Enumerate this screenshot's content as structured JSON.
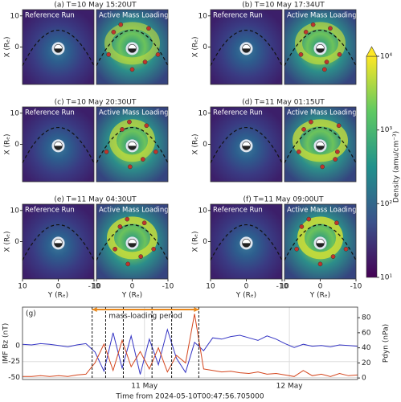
{
  "maps": {
    "run_labels": [
      "Reference Run",
      "Active Mass Loading"
    ],
    "xlabel": "Y (Rₑ)",
    "ylabel": "X (Rₑ)",
    "xlim": [
      10,
      -10
    ],
    "ylim": [
      -12,
      12
    ],
    "xticks": [
      10,
      0,
      -10
    ],
    "yticks": [
      10,
      0
    ],
    "panels": [
      {
        "title": "(a) T=10 May 15:20UT"
      },
      {
        "title": "(b) T=10 May 17:34UT"
      },
      {
        "title": "(c) T=10 May 20:30UT"
      },
      {
        "title": "(d) T=11 May 01:15UT"
      },
      {
        "title": "(e) T=11 May 04:30UT"
      },
      {
        "title": "(f) T=11 May 09:00UT"
      }
    ]
  },
  "colorbar": {
    "label": "Density (amu/cm⁻³)",
    "log": true,
    "lim": [
      10,
      10000
    ],
    "ticks": [
      {
        "value": 10,
        "label": "10¹"
      },
      {
        "value": 100,
        "label": "10²"
      },
      {
        "value": 1000,
        "label": "10³"
      },
      {
        "value": 10000,
        "label": "10⁴"
      }
    ]
  },
  "chart_data": {
    "type": "line",
    "panel_label": "(g)",
    "xlabel": "Time from 2024-05-10T00:47:56.705000",
    "ylabel": "IMF Bz (nT)",
    "y2label": "Pdyn (nPa)",
    "x": [
      3,
      4.5,
      6,
      7.5,
      9,
      10.5,
      12,
      13.5,
      15,
      16.5,
      18,
      19.5,
      21,
      22.5,
      24,
      25.5,
      27,
      28.5,
      30,
      31.5,
      33,
      34.5,
      36,
      37.5,
      39,
      40.5,
      42,
      43.5,
      45,
      46.5,
      48,
      49.5,
      51,
      52.5,
      54,
      55.5,
      57,
      58.5
    ],
    "xlim": [
      3,
      58.5
    ],
    "xticks": [
      {
        "value": 23.2,
        "label": "11 May"
      },
      {
        "value": 47.2,
        "label": "12 May"
      }
    ],
    "ylim": [
      -53,
      60
    ],
    "yticks": [
      0,
      -25,
      -50
    ],
    "y2lim": [
      -2,
      94
    ],
    "y2ticks": [
      0,
      20,
      40,
      60,
      80
    ],
    "event_times": [
      14.53,
      16.77,
      19.7,
      24.45,
      27.7,
      32.2
    ],
    "period": {
      "label": "mass-loading period",
      "range": [
        14.53,
        32.2
      ]
    },
    "series": [
      {
        "name": "IMF Bz",
        "color": "#3434c4",
        "values": [
          2,
          1,
          3,
          2,
          0,
          -2,
          1,
          3,
          -10,
          -40,
          20,
          -35,
          15,
          -45,
          10,
          -30,
          25,
          -20,
          -42,
          5,
          -8,
          12,
          10,
          14,
          16,
          12,
          8,
          15,
          10,
          3,
          -3,
          2,
          -1,
          0,
          -2,
          1,
          0,
          -1
        ]
      },
      {
        "name": "Pdyn",
        "color": "#d4461e",
        "axis": "y2",
        "values": [
          2,
          2,
          3,
          2,
          3,
          2,
          4,
          5,
          20,
          45,
          10,
          50,
          15,
          35,
          12,
          40,
          8,
          30,
          20,
          85,
          12,
          10,
          8,
          9,
          7,
          6,
          8,
          5,
          6,
          4,
          2,
          10,
          3,
          5,
          2,
          6,
          3,
          4
        ]
      }
    ]
  }
}
